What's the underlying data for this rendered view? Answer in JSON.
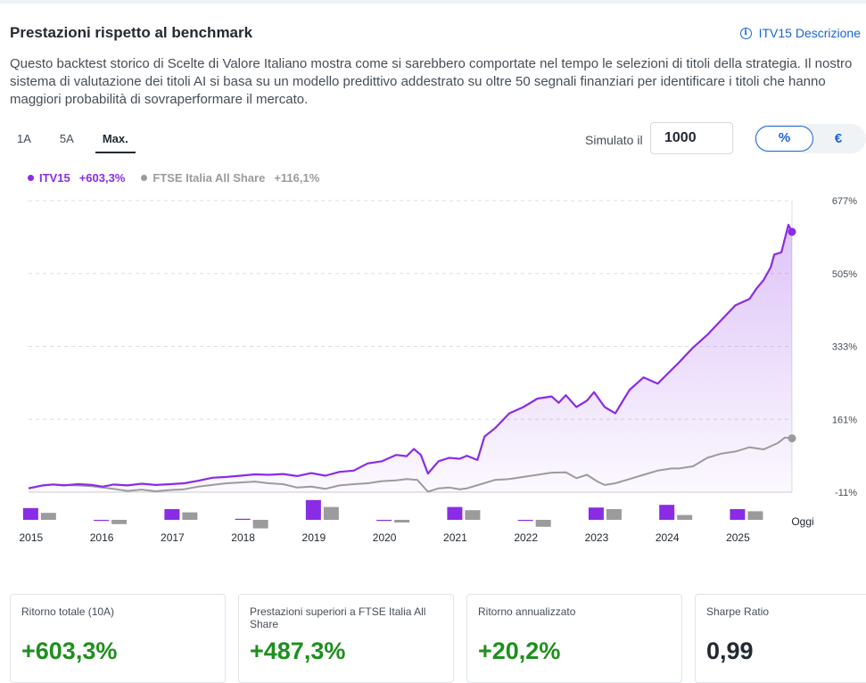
{
  "title": "Prestazioni rispetto al benchmark",
  "description_link": {
    "label": "ITV15 Descrizione",
    "icon": "info-icon"
  },
  "intro_text": "Questo backtest storico di Scelte di Valore Italiano mostra come si sarebbero comportate nel tempo le selezioni di titoli della strategia. Il nostro sistema di valutazione dei titoli AI si basa su un modello predittivo addestrato su oltre 50 segnali finanziari per identificare i titoli che hanno maggiori probabilità di sovraperformare il mercato.",
  "period_tabs": [
    {
      "label": "1A",
      "active": false
    },
    {
      "label": "5A",
      "active": false
    },
    {
      "label": "Max.",
      "active": true
    }
  ],
  "simulator": {
    "label": "Simulato il",
    "value": "1000"
  },
  "unit_toggle": {
    "percent": "%",
    "euro": "€",
    "selected": "percent"
  },
  "legend": [
    {
      "name": "ITV15",
      "value": "+603,3%",
      "color": "#8a2ce6"
    },
    {
      "name": "FTSE Italia All Share",
      "value": "+116,1%",
      "color": "#9b9b9b"
    }
  ],
  "chart_data": {
    "type": "line",
    "x_tick_labels": [
      "2015",
      "2016",
      "2017",
      "2018",
      "2019",
      "2020",
      "2021",
      "2022",
      "2023",
      "2024",
      "2025"
    ],
    "end_label": "Oggi",
    "y_tick_labels": [
      "677%",
      "505%",
      "333%",
      "161%",
      "-11%"
    ],
    "y_ticks": [
      677,
      505,
      333,
      161,
      -11
    ],
    "ylim": [
      -11,
      677
    ],
    "xlim": [
      2014.8,
      2025.6
    ],
    "grid": true,
    "series": [
      {
        "name": "ITV15",
        "color": "#8a2ce6",
        "final_value": "+603,3%",
        "points": [
          [
            2014.8,
            -2
          ],
          [
            2015.0,
            5
          ],
          [
            2015.15,
            7
          ],
          [
            2015.3,
            5
          ],
          [
            2015.5,
            8
          ],
          [
            2015.7,
            6
          ],
          [
            2015.85,
            2
          ],
          [
            2016.0,
            7
          ],
          [
            2016.2,
            5
          ],
          [
            2016.4,
            9
          ],
          [
            2016.6,
            6
          ],
          [
            2016.8,
            8
          ],
          [
            2017.0,
            10
          ],
          [
            2017.2,
            16
          ],
          [
            2017.4,
            23
          ],
          [
            2017.6,
            25
          ],
          [
            2017.8,
            28
          ],
          [
            2018.0,
            31
          ],
          [
            2018.2,
            30
          ],
          [
            2018.4,
            32
          ],
          [
            2018.6,
            27
          ],
          [
            2018.8,
            34
          ],
          [
            2019.0,
            28
          ],
          [
            2019.2,
            37
          ],
          [
            2019.4,
            40
          ],
          [
            2019.6,
            57
          ],
          [
            2019.8,
            62
          ],
          [
            2020.0,
            77
          ],
          [
            2020.15,
            74
          ],
          [
            2020.25,
            91
          ],
          [
            2020.35,
            77
          ],
          [
            2020.45,
            33
          ],
          [
            2020.6,
            62
          ],
          [
            2020.75,
            70
          ],
          [
            2020.9,
            68
          ],
          [
            2021.0,
            75
          ],
          [
            2021.15,
            65
          ],
          [
            2021.25,
            120
          ],
          [
            2021.4,
            140
          ],
          [
            2021.6,
            175
          ],
          [
            2021.8,
            190
          ],
          [
            2022.0,
            210
          ],
          [
            2022.2,
            215
          ],
          [
            2022.3,
            200
          ],
          [
            2022.4,
            218
          ],
          [
            2022.55,
            190
          ],
          [
            2022.7,
            205
          ],
          [
            2022.8,
            225
          ],
          [
            2022.95,
            190
          ],
          [
            2023.1,
            175
          ],
          [
            2023.3,
            230
          ],
          [
            2023.5,
            260
          ],
          [
            2023.7,
            245
          ],
          [
            2023.85,
            270
          ],
          [
            2024.0,
            295
          ],
          [
            2024.2,
            330
          ],
          [
            2024.4,
            360
          ],
          [
            2024.6,
            395
          ],
          [
            2024.8,
            430
          ],
          [
            2025.0,
            445
          ],
          [
            2025.1,
            470
          ],
          [
            2025.2,
            490
          ],
          [
            2025.3,
            520
          ],
          [
            2025.35,
            550
          ],
          [
            2025.45,
            555
          ],
          [
            2025.55,
            620
          ],
          [
            2025.6,
            603.3
          ]
        ]
      },
      {
        "name": "FTSE Italia All Share",
        "color": "#9b9b9b",
        "final_value": "+116,1%",
        "points": [
          [
            2014.8,
            -2
          ],
          [
            2015.0,
            5
          ],
          [
            2015.15,
            7
          ],
          [
            2015.3,
            6
          ],
          [
            2015.5,
            5
          ],
          [
            2015.7,
            3
          ],
          [
            2015.85,
            0
          ],
          [
            2016.0,
            -3
          ],
          [
            2016.2,
            -8
          ],
          [
            2016.4,
            -5
          ],
          [
            2016.6,
            -9
          ],
          [
            2016.8,
            -6
          ],
          [
            2017.0,
            -4
          ],
          [
            2017.2,
            2
          ],
          [
            2017.4,
            6
          ],
          [
            2017.6,
            10
          ],
          [
            2017.8,
            12
          ],
          [
            2018.0,
            14
          ],
          [
            2018.2,
            10
          ],
          [
            2018.4,
            8
          ],
          [
            2018.6,
            0
          ],
          [
            2018.8,
            2
          ],
          [
            2019.0,
            -3
          ],
          [
            2019.2,
            5
          ],
          [
            2019.4,
            8
          ],
          [
            2019.6,
            10
          ],
          [
            2019.8,
            15
          ],
          [
            2020.0,
            17
          ],
          [
            2020.15,
            20
          ],
          [
            2020.3,
            18
          ],
          [
            2020.45,
            -10
          ],
          [
            2020.6,
            -2
          ],
          [
            2020.75,
            0
          ],
          [
            2020.9,
            -4
          ],
          [
            2021.0,
            -2
          ],
          [
            2021.2,
            8
          ],
          [
            2021.4,
            18
          ],
          [
            2021.6,
            20
          ],
          [
            2021.8,
            25
          ],
          [
            2022.0,
            30
          ],
          [
            2022.2,
            35
          ],
          [
            2022.4,
            36
          ],
          [
            2022.55,
            22
          ],
          [
            2022.7,
            30
          ],
          [
            2022.85,
            14
          ],
          [
            2022.95,
            6
          ],
          [
            2023.1,
            10
          ],
          [
            2023.3,
            20
          ],
          [
            2023.5,
            30
          ],
          [
            2023.7,
            40
          ],
          [
            2023.9,
            45
          ],
          [
            2024.0,
            45
          ],
          [
            2024.2,
            50
          ],
          [
            2024.4,
            70
          ],
          [
            2024.6,
            80
          ],
          [
            2024.8,
            85
          ],
          [
            2025.0,
            95
          ],
          [
            2025.2,
            90
          ],
          [
            2025.4,
            105
          ],
          [
            2025.5,
            118
          ],
          [
            2025.6,
            116.1
          ]
        ]
      }
    ],
    "annual_returns": [
      {
        "year": "2015",
        "itv15": 22,
        "benchmark": 13
      },
      {
        "year": "2016",
        "itv15": -2,
        "benchmark": -8
      },
      {
        "year": "2017",
        "itv15": 20,
        "benchmark": 14
      },
      {
        "year": "2018",
        "itv15": 0,
        "benchmark": -16
      },
      {
        "year": "2019",
        "itv15": 37,
        "benchmark": 24
      },
      {
        "year": "2020",
        "itv15": -2,
        "benchmark": -5
      },
      {
        "year": "2021",
        "itv15": 24,
        "benchmark": 18
      },
      {
        "year": "2022",
        "itv15": -2,
        "benchmark": -13
      },
      {
        "year": "2023",
        "itv15": 23,
        "benchmark": 20
      },
      {
        "year": "2024",
        "itv15": 28,
        "benchmark": 9
      },
      {
        "year": "2025",
        "itv15": 20,
        "benchmark": 16
      }
    ]
  },
  "metric_cards": [
    {
      "label": "Ritorno totale (10A)",
      "value": "+603,3%",
      "color": "#1e8f1e"
    },
    {
      "label": "Prestazioni superiori a FTSE Italia All Share",
      "value": "+487,3%",
      "color": "#1e8f1e"
    },
    {
      "label": "Ritorno annualizzato",
      "value": "+20,2%",
      "color": "#1e8f1e"
    },
    {
      "label": "Sharpe Ratio",
      "value": "0,99",
      "color": "#232a31"
    }
  ]
}
